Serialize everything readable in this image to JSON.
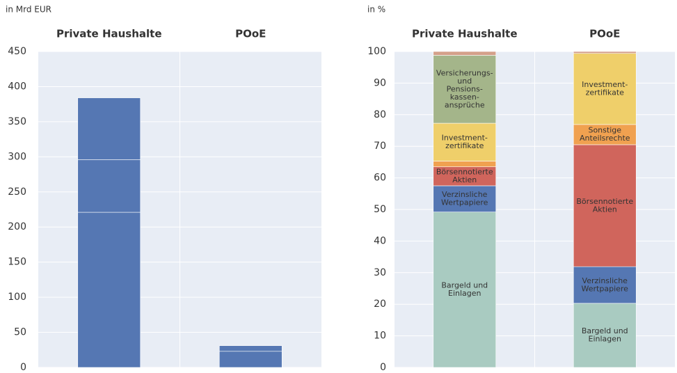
{
  "chart_data": [
    {
      "type": "stacked_bar",
      "subtitle": "in Mrd EUR",
      "categories": [
        "Private Haushalte",
        "POoE"
      ],
      "ylim": [
        0,
        450
      ],
      "yticks": [
        0,
        50,
        100,
        150,
        200,
        250,
        300,
        350,
        400,
        450
      ],
      "grid": true,
      "series": [
        {
          "color": "#5577b3",
          "values": [
            221,
            23
          ]
        },
        {
          "color": "#5577b3",
          "values": [
            75,
            8
          ]
        },
        {
          "color": "#5577b3",
          "values": [
            88,
            0
          ]
        }
      ]
    },
    {
      "type": "stacked_bar",
      "subtitle": "in %",
      "categories": [
        "Private Haushalte",
        "POoE"
      ],
      "ylim": [
        0,
        100
      ],
      "yticks": [
        0,
        10,
        20,
        30,
        40,
        50,
        60,
        70,
        80,
        90,
        100
      ],
      "grid": true,
      "series": [
        {
          "color": "#a9cbc1",
          "values": [
            49.2,
            20.3
          ],
          "segment_labels": [
            [
              "Bargeld und",
              "Einlagen"
            ],
            [
              "Bargeld und",
              "Einlagen"
            ]
          ]
        },
        {
          "color": "#5577b3",
          "values": [
            8.3,
            11.6
          ],
          "segment_labels": [
            [
              "Verzinsliche",
              "Wertpapiere"
            ],
            [
              "Verzinsliche",
              "Wertpapiere"
            ]
          ]
        },
        {
          "color": "#d0655c",
          "values": [
            6,
            38.6
          ],
          "segment_labels": [
            [
              "Börsennotierte",
              "Aktien"
            ],
            [
              "Börsennotierte",
              "Aktien"
            ]
          ]
        },
        {
          "color": "#f0a150",
          "values": [
            1.8,
            6.4
          ],
          "segment_labels": [
            null,
            [
              "Sonstige",
              "Anteilsrechte"
            ]
          ]
        },
        {
          "color": "#efcf6a",
          "values": [
            12,
            22.5
          ],
          "segment_labels": [
            [
              "Investment-",
              "zertifikate"
            ],
            [
              "Investment-",
              "zertifikate"
            ]
          ]
        },
        {
          "color": "#a4b58a",
          "values": [
            21.5,
            0
          ],
          "segment_labels": [
            [
              "Versicherungs-",
              "und",
              "Pensions-",
              "kassen-",
              "ansprüche"
            ],
            null
          ]
        },
        {
          "color": "#d4a08a",
          "values": [
            1.2,
            0.6
          ]
        }
      ]
    }
  ]
}
